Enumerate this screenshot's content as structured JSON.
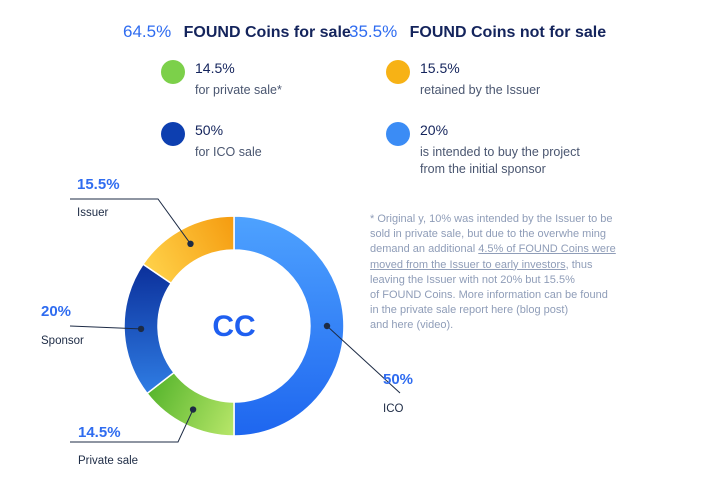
{
  "headlines": {
    "for_sale_pct": "64.5%",
    "for_sale_text": "FOUND Coins for sale",
    "not_for_sale_pct": "35.5%",
    "not_for_sale_text": "FOUND Coins not for sale"
  },
  "legend": [
    {
      "value": "14.5%",
      "desc": [
        "for private sale*"
      ],
      "color": "#7cd04a"
    },
    {
      "value": "50%",
      "desc": [
        "for ICO sale"
      ],
      "color": "#0d3fb0"
    },
    {
      "value": "15.5%",
      "desc": [
        "retained by the Issuer"
      ],
      "color": "#f7b215"
    },
    {
      "value": "20%",
      "desc": [
        "is intended to buy the project",
        "from the initial sponsor"
      ],
      "color": "#3b8cf5"
    }
  ],
  "footnote": {
    "line1": "* Original y, 10% was intended by the Issuer to be",
    "line2": "sold in private sale, but due to the overwhe ming",
    "line3a": "demand an additional ",
    "line3b": "4.5% of FOUND Coins were",
    "line4a": "moved from the Issuer to early investors",
    "line4b": ", thus",
    "line5": "leaving the Issuer with not 20% but 15.5%",
    "line6": "of FOUND Coins. More information can be found",
    "line7": "in the private sale report here (blog post)",
    "line8": "and here (video)."
  },
  "logo_text": "CC",
  "chart_data": {
    "type": "pie",
    "donut": true,
    "slices": [
      {
        "label": "ICO",
        "value": 50,
        "display": "50%",
        "colors": [
          "#1e66ef",
          "#4ea2ff"
        ]
      },
      {
        "label": "Private sale",
        "value": 14.5,
        "display": "14.5%",
        "colors": [
          "#57b52d",
          "#b9e76a"
        ]
      },
      {
        "label": "Sponsor",
        "value": 20,
        "display": "20%",
        "colors": [
          "#0b2f9a",
          "#2f7de4"
        ]
      },
      {
        "label": "Issuer",
        "value": 15.5,
        "display": "15.5%",
        "colors": [
          "#f59b0f",
          "#ffd24a"
        ]
      }
    ],
    "title": "",
    "start_angle_deg": 0,
    "direction": "clockwise"
  }
}
